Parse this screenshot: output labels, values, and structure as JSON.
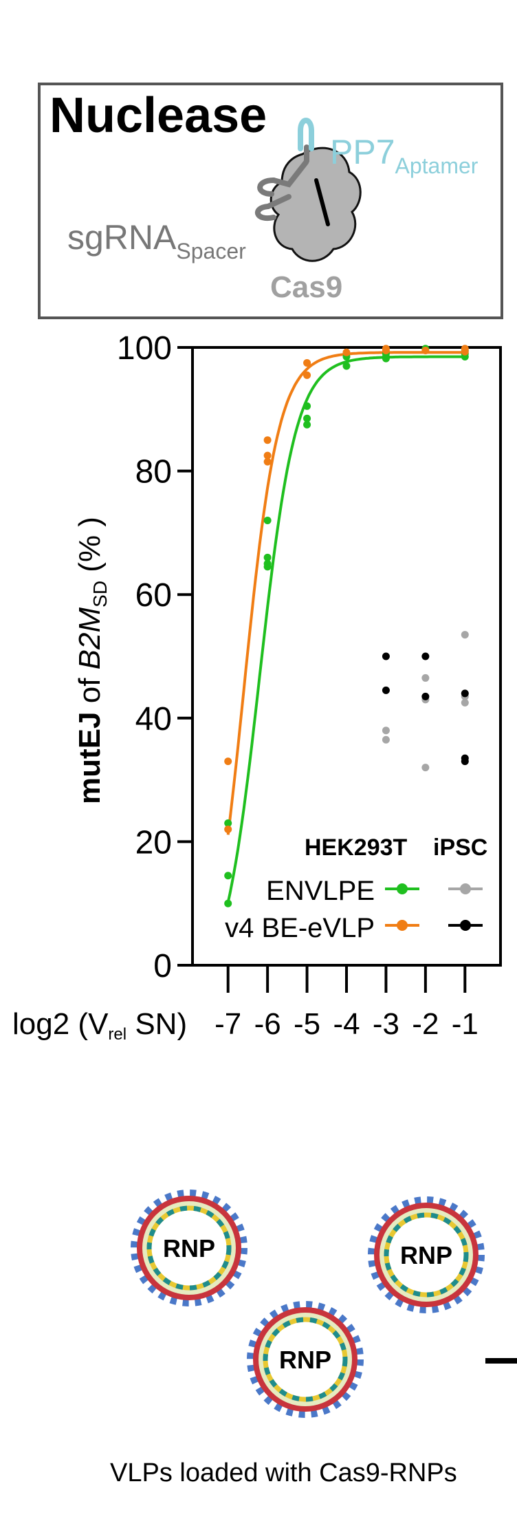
{
  "panel": {
    "title": "Nuclease",
    "aptamer_main": "PP7",
    "aptamer_sub": "Aptamer",
    "spacer_main": "sgRNA",
    "spacer_sub": "Spacer",
    "protein": "Cas9"
  },
  "colors": {
    "envlpe": "#1fbf1f",
    "bevlp": "#f07d14",
    "ipsc_envlpe": "#a6a6a6",
    "ipsc_bevlp": "#000000",
    "aptamer": "#8ccfdb",
    "cas9": "#b4b4b4",
    "sgrna": "#7a7a7a",
    "vlp_outer": "#c8343c",
    "vlp_dots": "#4a78c8",
    "vlp_fill": "#e6ebc0",
    "vlp_inner_a": "#1e8c8c",
    "vlp_inner_b": "#e8c832"
  },
  "chart_data": {
    "type": "scatter",
    "ylabel_bold": "mutEJ",
    "ylabel_of": " of ",
    "ylabel_gene": "B2M",
    "ylabel_gene_sub": "SD",
    "ylabel_unit": " (% )",
    "xlabel_pre": "log2 (V",
    "xlabel_sub": "rel",
    "xlabel_post": " SN)",
    "ylim": [
      0,
      100
    ],
    "xlim": [
      -7.9,
      -0.1
    ],
    "yticks": [
      "0",
      "20",
      "40",
      "60",
      "80",
      "100"
    ],
    "xticks": [
      "-7",
      "-6",
      "-5",
      "-4",
      "-3",
      "-2",
      "-1"
    ],
    "legend_headers": [
      "HEK293T",
      "iPSC"
    ],
    "series": [
      {
        "name": "ENVLPE",
        "cell": "HEK293T",
        "fit": {
          "bottom": -5,
          "top": 98.5,
          "x50": -6.2,
          "k": 2.2
        },
        "points": [
          [
            -7,
            23
          ],
          [
            -7,
            14.5
          ],
          [
            -7,
            10
          ],
          [
            -6,
            72
          ],
          [
            -6,
            66
          ],
          [
            -6,
            65
          ],
          [
            -6,
            64.5
          ],
          [
            -5,
            90.5
          ],
          [
            -5,
            88.5
          ],
          [
            -5,
            87.5
          ],
          [
            -4,
            98.5
          ],
          [
            -4,
            97
          ],
          [
            -3,
            99
          ],
          [
            -3,
            98.5
          ],
          [
            -3,
            98.2
          ],
          [
            -2,
            99.8
          ],
          [
            -1,
            99.5
          ],
          [
            -1,
            99
          ],
          [
            -1,
            98.5
          ]
        ]
      },
      {
        "name": "v4 BE-eVLP",
        "cell": "HEK293T",
        "fit": {
          "bottom": -10,
          "top": 99.2,
          "x50": -6.6,
          "k": 2.3
        },
        "points": [
          [
            -7,
            33
          ],
          [
            -7,
            22
          ],
          [
            -6,
            85
          ],
          [
            -6,
            82.5
          ],
          [
            -6,
            81.5
          ],
          [
            -5,
            97.5
          ],
          [
            -5,
            95.5
          ],
          [
            -4,
            99.2
          ],
          [
            -3,
            99.8
          ],
          [
            -3,
            99.5
          ],
          [
            -2,
            99.5
          ],
          [
            -1,
            99.8
          ],
          [
            -1,
            99.3
          ]
        ]
      },
      {
        "name": "ENVLPE",
        "cell": "iPSC",
        "points": [
          [
            -3,
            38
          ],
          [
            -3,
            36.5
          ],
          [
            -2,
            46.5
          ],
          [
            -2,
            43
          ],
          [
            -2,
            32
          ],
          [
            -1,
            53.5
          ],
          [
            -1,
            43.5
          ],
          [
            -1,
            42.5
          ]
        ]
      },
      {
        "name": "v4 BE-eVLP",
        "cell": "iPSC",
        "points": [
          [
            -3,
            50
          ],
          [
            -3,
            44.5
          ],
          [
            -2,
            50
          ],
          [
            -2,
            43.5
          ],
          [
            -1,
            44
          ],
          [
            -1,
            33.5
          ],
          [
            -1,
            33
          ]
        ]
      }
    ]
  },
  "vlps": [
    {
      "label": "RNP"
    },
    {
      "label": "RNP"
    },
    {
      "label": "RNP"
    }
  ],
  "caption": "VLPs loaded with Cas9-RNPs"
}
